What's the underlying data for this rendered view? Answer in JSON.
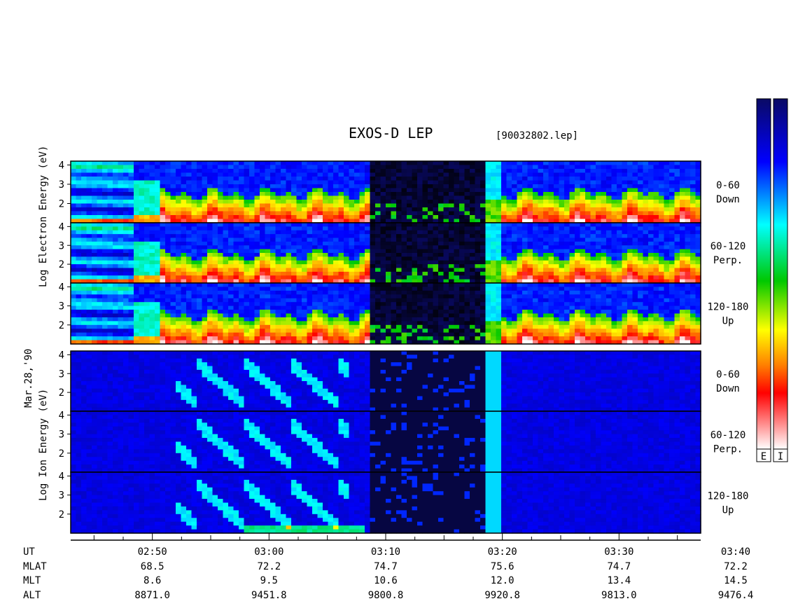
{
  "title": "EXOS-D LEP",
  "file_id": "[90032802.lep]",
  "date_label": "Mar.28,'90",
  "colorbar_labels": [
    "E",
    "I"
  ],
  "panel_groups": [
    {
      "id": "electron",
      "side_label": [
        "Log",
        "Electron",
        "Energy",
        "(eV)"
      ]
    },
    {
      "id": "ion",
      "side_label": [
        "Log",
        "Ion",
        "Energy",
        "(eV)"
      ]
    }
  ],
  "pitch_labels": [
    [
      "0-60",
      "Down"
    ],
    [
      "60-120",
      "Perp."
    ],
    [
      "120-180",
      "Up"
    ],
    [
      "0-60",
      "Down"
    ],
    [
      "60-120",
      "Perp."
    ],
    [
      "120-180",
      "Up"
    ]
  ],
  "y_ticks": [
    "4",
    "3",
    "2"
  ],
  "ephemeris": {
    "row_labels": [
      "UT",
      "MLAT",
      "MLT",
      "ALT"
    ],
    "columns": [
      {
        "UT": "02:50",
        "MLAT": "68.5",
        "MLT": "8.6",
        "ALT": "8871.0"
      },
      {
        "UT": "03:00",
        "MLAT": "72.2",
        "MLT": "9.5",
        "ALT": "9451.8"
      },
      {
        "UT": "03:10",
        "MLAT": "74.7",
        "MLT": "10.6",
        "ALT": "9800.8"
      },
      {
        "UT": "03:20",
        "MLAT": "75.6",
        "MLT": "12.0",
        "ALT": "9920.8"
      },
      {
        "UT": "03:30",
        "MLAT": "74.7",
        "MLT": "13.4",
        "ALT": "9813.0"
      },
      {
        "UT": "03:40",
        "MLAT": "72.2",
        "MLT": "14.5",
        "ALT": "9476.4"
      }
    ]
  },
  "chart_data": {
    "type": "heatmap",
    "title": "EXOS-D LEP",
    "xlabel": "UT",
    "ylabel": "Log Energy (eV)",
    "x_ticks": [
      "02:50",
      "03:00",
      "03:10",
      "03:20",
      "03:30",
      "03:40"
    ],
    "x_range_minutes": [
      -7,
      47
    ],
    "ylim": [
      1,
      4.2
    ],
    "panels": [
      {
        "species": "Electron",
        "pitch": "0-60 Down"
      },
      {
        "species": "Electron",
        "pitch": "60-120 Perp."
      },
      {
        "species": "Electron",
        "pitch": "120-180 Up"
      },
      {
        "species": "Ion",
        "pitch": "0-60 Down"
      },
      {
        "species": "Ion",
        "pitch": "60-120 Perp."
      },
      {
        "species": "Ion",
        "pitch": "120-180 Up"
      }
    ],
    "colorscale": [
      "#000000",
      "#0a0a6e",
      "#0000ff",
      "#00ffff",
      "#00c800",
      "#ffff00",
      "#ff8000",
      "#ff0000",
      "#ffffff"
    ]
  }
}
